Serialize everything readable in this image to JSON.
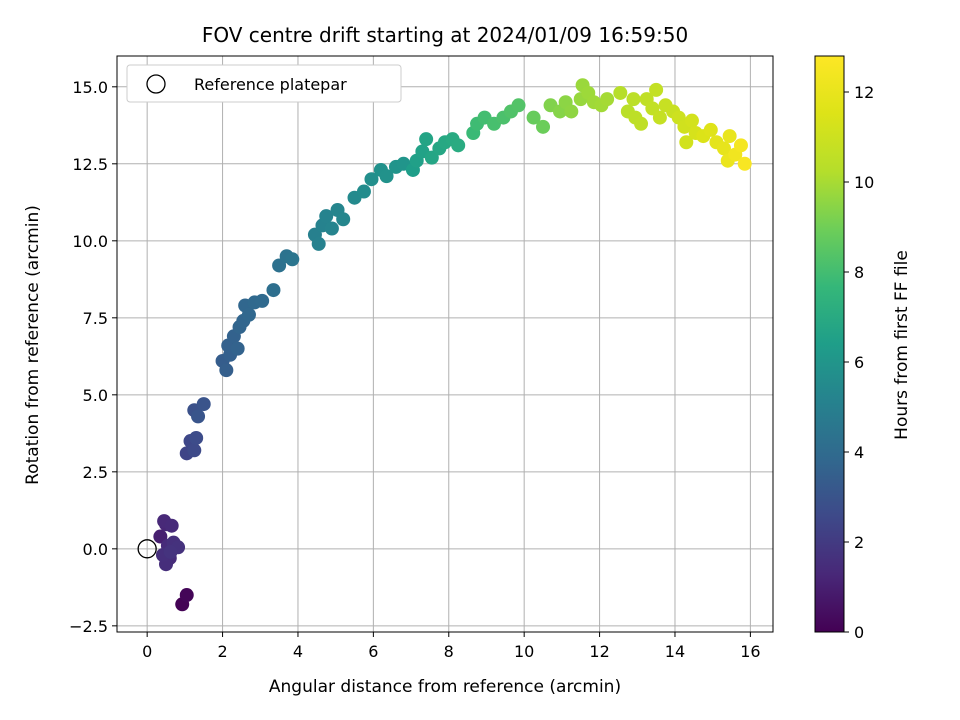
{
  "chart_data": {
    "type": "scatter",
    "title": "FOV centre drift starting at 2024/01/09 16:59:50",
    "xlabel": "Angular distance from reference (arcmin)",
    "ylabel": "Rotation from reference (arcmin)",
    "xlim": [
      -0.8,
      16.6
    ],
    "ylim": [
      -2.7,
      16.0
    ],
    "xticks": [
      0,
      2,
      4,
      6,
      8,
      10,
      12,
      14,
      16
    ],
    "xtick_labels": [
      "0",
      "2",
      "4",
      "6",
      "8",
      "10",
      "12",
      "14",
      "16"
    ],
    "yticks": [
      -2.5,
      0.0,
      2.5,
      5.0,
      7.5,
      10.0,
      12.5,
      15.0
    ],
    "ytick_labels": [
      "−2.5",
      "0.0",
      "2.5",
      "5.0",
      "7.5",
      "10.0",
      "12.5",
      "15.0"
    ],
    "grid": true,
    "colormap": "viridis",
    "colorbar": {
      "label": "Hours from first FF file",
      "range": [
        0,
        12.8
      ],
      "ticks": [
        0,
        2,
        4,
        6,
        8,
        10,
        12
      ],
      "tick_labels": [
        "0",
        "2",
        "4",
        "6",
        "8",
        "10",
        "12"
      ]
    },
    "legend": {
      "position": "top-left",
      "entries": [
        {
          "label": "Reference platepar",
          "marker": "open-circle"
        }
      ]
    },
    "reference_point": {
      "x": 0.0,
      "y": 0.0
    },
    "points": [
      [
        0.93,
        -1.8,
        0.05
      ],
      [
        1.05,
        -1.5,
        0.15
      ],
      [
        0.35,
        0.4,
        1.0
      ],
      [
        0.5,
        0.8,
        1.2
      ],
      [
        0.45,
        0.9,
        1.3
      ],
      [
        0.65,
        0.75,
        1.35
      ],
      [
        0.55,
        0.1,
        1.4
      ],
      [
        0.6,
        -0.3,
        1.45
      ],
      [
        0.5,
        -0.5,
        1.5
      ],
      [
        0.42,
        -0.2,
        1.55
      ],
      [
        0.7,
        0.2,
        1.6
      ],
      [
        0.82,
        0.05,
        1.65
      ],
      [
        0.62,
        -0.1,
        1.7
      ],
      [
        1.05,
        3.1,
        2.4
      ],
      [
        1.15,
        3.5,
        2.5
      ],
      [
        1.25,
        3.2,
        2.6
      ],
      [
        1.3,
        3.6,
        2.7
      ],
      [
        1.25,
        4.5,
        2.9
      ],
      [
        1.5,
        4.7,
        3.0
      ],
      [
        1.35,
        4.3,
        3.05
      ],
      [
        2.0,
        6.1,
        3.4
      ],
      [
        2.1,
        5.8,
        3.45
      ],
      [
        2.2,
        6.3,
        3.5
      ],
      [
        2.15,
        6.6,
        3.55
      ],
      [
        2.3,
        6.9,
        3.6
      ],
      [
        2.4,
        6.5,
        3.65
      ],
      [
        2.45,
        7.2,
        3.7
      ],
      [
        2.55,
        7.4,
        3.75
      ],
      [
        2.6,
        7.9,
        3.8
      ],
      [
        2.7,
        7.6,
        3.85
      ],
      [
        2.85,
        8.0,
        3.9
      ],
      [
        3.05,
        8.05,
        3.95
      ],
      [
        3.35,
        8.4,
        4.2
      ],
      [
        3.5,
        9.2,
        4.3
      ],
      [
        3.7,
        9.5,
        4.4
      ],
      [
        3.85,
        9.4,
        4.5
      ],
      [
        4.45,
        10.2,
        5.0
      ],
      [
        4.55,
        9.9,
        5.05
      ],
      [
        4.65,
        10.5,
        5.1
      ],
      [
        4.75,
        10.8,
        5.15
      ],
      [
        4.9,
        10.4,
        5.2
      ],
      [
        5.05,
        11.0,
        5.25
      ],
      [
        5.2,
        10.7,
        5.3
      ],
      [
        5.5,
        11.4,
        5.5
      ],
      [
        5.75,
        11.6,
        5.6
      ],
      [
        5.95,
        12.0,
        5.7
      ],
      [
        6.2,
        12.3,
        5.8
      ],
      [
        6.35,
        12.1,
        5.85
      ],
      [
        6.6,
        12.4,
        5.95
      ],
      [
        6.8,
        12.5,
        6.0
      ],
      [
        7.05,
        12.3,
        6.4
      ],
      [
        7.15,
        12.6,
        6.5
      ],
      [
        7.3,
        12.9,
        6.6
      ],
      [
        7.4,
        13.3,
        6.7
      ],
      [
        7.55,
        12.7,
        6.75
      ],
      [
        7.75,
        13.0,
        6.8
      ],
      [
        7.9,
        13.2,
        6.9
      ],
      [
        8.1,
        13.3,
        7.0
      ],
      [
        8.25,
        13.1,
        7.05
      ],
      [
        8.65,
        13.5,
        7.8
      ],
      [
        8.75,
        13.8,
        7.9
      ],
      [
        8.95,
        14.0,
        8.0
      ],
      [
        9.2,
        13.8,
        8.1
      ],
      [
        9.45,
        14.0,
        8.2
      ],
      [
        9.65,
        14.2,
        8.3
      ],
      [
        9.85,
        14.4,
        8.35
      ],
      [
        10.25,
        14.0,
        8.8
      ],
      [
        10.5,
        13.7,
        8.9
      ],
      [
        10.7,
        14.4,
        9.3
      ],
      [
        10.95,
        14.2,
        9.4
      ],
      [
        11.1,
        14.5,
        9.5
      ],
      [
        11.25,
        14.2,
        9.55
      ],
      [
        11.5,
        14.6,
        9.7
      ],
      [
        11.55,
        15.05,
        9.75
      ],
      [
        11.7,
        14.8,
        9.8
      ],
      [
        11.85,
        14.5,
        9.85
      ],
      [
        12.05,
        14.4,
        9.9
      ],
      [
        12.2,
        14.6,
        9.95
      ],
      [
        12.55,
        14.8,
        10.3
      ],
      [
        12.75,
        14.2,
        10.4
      ],
      [
        12.9,
        14.6,
        10.45
      ],
      [
        12.95,
        14.0,
        10.5
      ],
      [
        13.1,
        13.8,
        10.55
      ],
      [
        13.25,
        14.6,
        10.6
      ],
      [
        13.4,
        14.3,
        10.65
      ],
      [
        13.5,
        14.9,
        10.7
      ],
      [
        13.6,
        14.0,
        10.75
      ],
      [
        13.75,
        14.4,
        10.8
      ],
      [
        13.95,
        14.2,
        10.85
      ],
      [
        14.1,
        14.0,
        11.0
      ],
      [
        14.25,
        13.7,
        11.1
      ],
      [
        14.3,
        13.2,
        11.15
      ],
      [
        14.45,
        13.9,
        11.2
      ],
      [
        14.55,
        13.5,
        11.3
      ],
      [
        14.75,
        13.4,
        11.5
      ],
      [
        14.95,
        13.6,
        11.6
      ],
      [
        15.1,
        13.2,
        11.8
      ],
      [
        15.3,
        13.0,
        11.9
      ],
      [
        15.45,
        13.4,
        12.0
      ],
      [
        15.4,
        12.6,
        12.1
      ],
      [
        15.6,
        12.8,
        12.3
      ],
      [
        15.75,
        13.1,
        12.45
      ],
      [
        15.85,
        12.5,
        12.6
      ]
    ]
  }
}
